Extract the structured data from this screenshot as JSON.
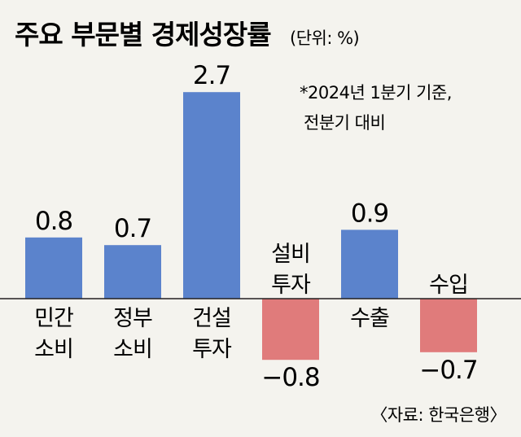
{
  "title": "주요 부문별 경제성장률",
  "unit": "(단위: %)",
  "note": [
    "*2024년 1분기 기준,",
    "전분기 대비"
  ],
  "source": "〈자료: 한국은행〉",
  "colors": {
    "positive": "#5b83cc",
    "negative": "#e07b7b",
    "background": "#f4f3ee"
  },
  "chart_data": {
    "type": "bar",
    "categories": [
      [
        "민간",
        "소비"
      ],
      [
        "정부",
        "소비"
      ],
      [
        "건설",
        "투자"
      ],
      [
        "설비",
        "투자"
      ],
      [
        "수출"
      ],
      [
        "수입"
      ]
    ],
    "values": [
      0.8,
      0.7,
      2.7,
      -0.8,
      0.9,
      -0.7
    ],
    "value_labels": [
      "0.8",
      "0.7",
      "2.7",
      "−0.8",
      "0.9",
      "−0.7"
    ],
    "ylim": [
      -0.9,
      2.7
    ],
    "grid": false,
    "legend": "none"
  }
}
